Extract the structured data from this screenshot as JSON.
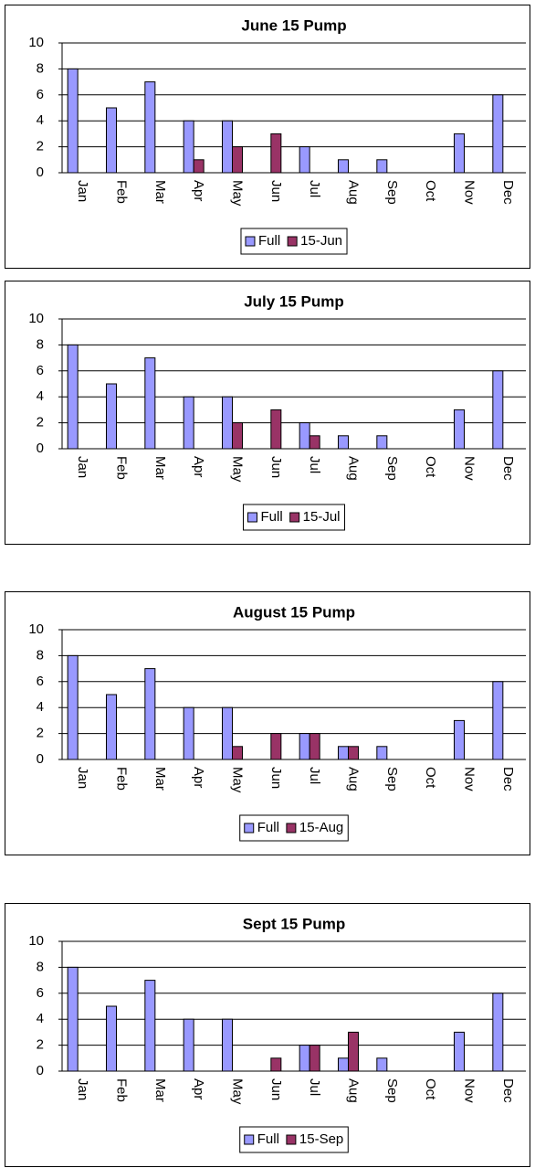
{
  "chart_data": [
    {
      "type": "bar",
      "title": "June 15 Pump",
      "categories": [
        "Jan",
        "Feb",
        "Mar",
        "Apr",
        "May",
        "Jun",
        "Jul",
        "Aug",
        "Sep",
        "Oct",
        "Nov",
        "Dec"
      ],
      "series": [
        {
          "name": "Full",
          "color": "#9999ff",
          "values": [
            8,
            5,
            7,
            4,
            4,
            0,
            2,
            1,
            1,
            0,
            3,
            6
          ]
        },
        {
          "name": "15-Jun",
          "color": "#993366",
          "values": [
            0,
            0,
            0,
            1,
            2,
            3,
            0,
            0,
            0,
            0,
            0,
            0
          ]
        }
      ],
      "ylim": [
        0,
        10
      ],
      "yticks": [
        0,
        2,
        4,
        6,
        8,
        10
      ],
      "grid": true,
      "legend": "bottom"
    },
    {
      "type": "bar",
      "title": "July 15 Pump",
      "categories": [
        "Jan",
        "Feb",
        "Mar",
        "Apr",
        "May",
        "Jun",
        "Jul",
        "Aug",
        "Sep",
        "Oct",
        "Nov",
        "Dec"
      ],
      "series": [
        {
          "name": "Full",
          "color": "#9999ff",
          "values": [
            8,
            5,
            7,
            4,
            4,
            0,
            2,
            1,
            1,
            0,
            3,
            6
          ]
        },
        {
          "name": "15-Jul",
          "color": "#993366",
          "values": [
            0,
            0,
            0,
            0,
            2,
            3,
            1,
            0,
            0,
            0,
            0,
            0
          ]
        }
      ],
      "ylim": [
        0,
        10
      ],
      "yticks": [
        0,
        2,
        4,
        6,
        8,
        10
      ],
      "grid": true,
      "legend": "bottom"
    },
    {
      "type": "bar",
      "title": "August 15 Pump",
      "categories": [
        "Jan",
        "Feb",
        "Mar",
        "Apr",
        "May",
        "Jun",
        "Jul",
        "Aug",
        "Sep",
        "Oct",
        "Nov",
        "Dec"
      ],
      "series": [
        {
          "name": "Full",
          "color": "#9999ff",
          "values": [
            8,
            5,
            7,
            4,
            4,
            0,
            2,
            1,
            1,
            0,
            3,
            6
          ]
        },
        {
          "name": "15-Aug",
          "color": "#993366",
          "values": [
            0,
            0,
            0,
            0,
            1,
            2,
            2,
            1,
            0,
            0,
            0,
            0
          ]
        }
      ],
      "ylim": [
        0,
        10
      ],
      "yticks": [
        0,
        2,
        4,
        6,
        8,
        10
      ],
      "grid": true,
      "legend": "bottom"
    },
    {
      "type": "bar",
      "title": "Sept 15 Pump",
      "categories": [
        "Jan",
        "Feb",
        "Mar",
        "Apr",
        "May",
        "Jun",
        "Jul",
        "Aug",
        "Sep",
        "Oct",
        "Nov",
        "Dec"
      ],
      "series": [
        {
          "name": "Full",
          "color": "#9999ff",
          "values": [
            8,
            5,
            7,
            4,
            4,
            0,
            2,
            1,
            1,
            0,
            3,
            6
          ]
        },
        {
          "name": "15-Sep",
          "color": "#993366",
          "values": [
            0,
            0,
            0,
            0,
            0,
            1,
            2,
            3,
            0,
            0,
            0,
            0
          ]
        }
      ],
      "ylim": [
        0,
        10
      ],
      "yticks": [
        0,
        2,
        4,
        6,
        8,
        10
      ],
      "grid": true,
      "legend": "bottom"
    }
  ]
}
